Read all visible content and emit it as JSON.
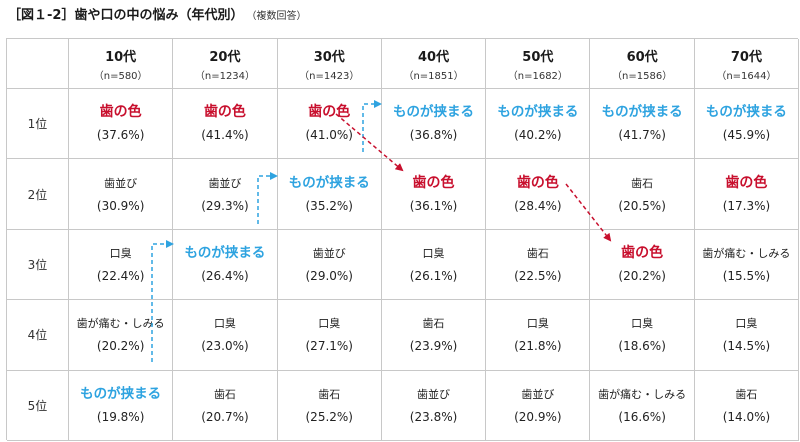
{
  "title": "［図１-2］歯や口の中の悩み（年代別）",
  "title_note": "（複数回答）",
  "colors": {
    "teeth_color": "#c8102e",
    "food_stuck": "#2ea3e0"
  },
  "columns": [
    {
      "age": "10代",
      "n": "（n=580）"
    },
    {
      "age": "20代",
      "n": "（n=1234）"
    },
    {
      "age": "30代",
      "n": "（n=1423）"
    },
    {
      "age": "40代",
      "n": "（n=1851）"
    },
    {
      "age": "50代",
      "n": "（n=1682）"
    },
    {
      "age": "60代",
      "n": "（n=1586）"
    },
    {
      "age": "70代",
      "n": "（n=1644）"
    }
  ],
  "rows": [
    {
      "rank": "1位",
      "cells": [
        {
          "item": "歯の色",
          "pct": "(37.6%)",
          "style": "teeth"
        },
        {
          "item": "歯の色",
          "pct": "(41.4%)",
          "style": "teeth"
        },
        {
          "item": "歯の色",
          "pct": "(41.0%)",
          "style": "teeth"
        },
        {
          "item": "ものが挟まる",
          "pct": "(36.8%)",
          "style": "food"
        },
        {
          "item": "ものが挟まる",
          "pct": "(40.2%)",
          "style": "food"
        },
        {
          "item": "ものが挟まる",
          "pct": "(41.7%)",
          "style": "food"
        },
        {
          "item": "ものが挟まる",
          "pct": "(45.9%)",
          "style": "food"
        }
      ]
    },
    {
      "rank": "2位",
      "cells": [
        {
          "item": "歯並び",
          "pct": "(30.9%)",
          "style": "plain"
        },
        {
          "item": "歯並び",
          "pct": "(29.3%)",
          "style": "plain"
        },
        {
          "item": "ものが挟まる",
          "pct": "(35.2%)",
          "style": "food"
        },
        {
          "item": "歯の色",
          "pct": "(36.1%)",
          "style": "teeth"
        },
        {
          "item": "歯の色",
          "pct": "(28.4%)",
          "style": "teeth"
        },
        {
          "item": "歯石",
          "pct": "(20.5%)",
          "style": "plain"
        },
        {
          "item": "歯の色",
          "pct": "(17.3%)",
          "style": "teeth"
        }
      ]
    },
    {
      "rank": "3位",
      "cells": [
        {
          "item": "口臭",
          "pct": "(22.4%)",
          "style": "plain"
        },
        {
          "item": "ものが挟まる",
          "pct": "(26.4%)",
          "style": "food"
        },
        {
          "item": "歯並び",
          "pct": "(29.0%)",
          "style": "plain"
        },
        {
          "item": "口臭",
          "pct": "(26.1%)",
          "style": "plain"
        },
        {
          "item": "歯石",
          "pct": "(22.5%)",
          "style": "plain"
        },
        {
          "item": "歯の色",
          "pct": "(20.2%)",
          "style": "teeth"
        },
        {
          "item": "歯が痛む・しみる",
          "pct": "(15.5%)",
          "style": "plain"
        }
      ]
    },
    {
      "rank": "4位",
      "cells": [
        {
          "item": "歯が痛む・しみる",
          "pct": "(20.2%)",
          "style": "plain"
        },
        {
          "item": "口臭",
          "pct": "(23.0%)",
          "style": "plain"
        },
        {
          "item": "口臭",
          "pct": "(27.1%)",
          "style": "plain"
        },
        {
          "item": "歯石",
          "pct": "(23.9%)",
          "style": "plain"
        },
        {
          "item": "口臭",
          "pct": "(21.8%)",
          "style": "plain"
        },
        {
          "item": "口臭",
          "pct": "(18.6%)",
          "style": "plain"
        },
        {
          "item": "口臭",
          "pct": "(14.5%)",
          "style": "plain"
        }
      ]
    },
    {
      "rank": "5位",
      "cells": [
        {
          "item": "ものが挟まる",
          "pct": "(19.8%)",
          "style": "food"
        },
        {
          "item": "歯石",
          "pct": "(20.7%)",
          "style": "plain"
        },
        {
          "item": "歯石",
          "pct": "(25.2%)",
          "style": "plain"
        },
        {
          "item": "歯並び",
          "pct": "(23.8%)",
          "style": "plain"
        },
        {
          "item": "歯並び",
          "pct": "(20.9%)",
          "style": "plain"
        },
        {
          "item": "歯が痛む・しみる",
          "pct": "(16.6%)",
          "style": "plain"
        },
        {
          "item": "歯石",
          "pct": "(14.0%)",
          "style": "plain"
        }
      ]
    }
  ]
}
